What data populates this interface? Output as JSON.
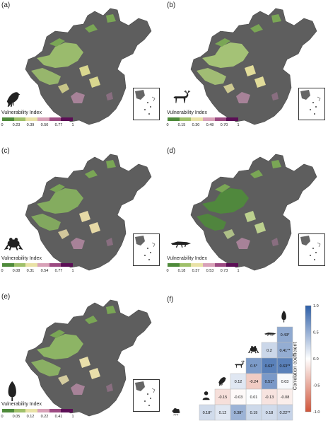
{
  "panels": [
    {
      "label": "(a)",
      "taxon_icon": "bird-icon",
      "legend_title": "Vulnerability Index",
      "ticks": [
        "0",
        "0.23",
        "0.39",
        "0.50",
        "0.77",
        "1"
      ]
    },
    {
      "label": "(b)",
      "taxon_icon": "deer-icon",
      "legend_title": "Vulnerability Index",
      "ticks": [
        "0",
        "0.15",
        "0.30",
        "0.48",
        "0.70",
        "1"
      ]
    },
    {
      "label": "(c)",
      "taxon_icon": "frog-icon",
      "legend_title": "Vulnerability Index",
      "ticks": [
        "0",
        "0.08",
        "0.31",
        "0.54",
        "0.77",
        "1"
      ]
    },
    {
      "label": "(d)",
      "taxon_icon": "crocodile-icon",
      "legend_title": "Vulnerability Index",
      "ticks": [
        "0",
        "0.18",
        "0.37",
        "0.53",
        "0.73",
        "1"
      ]
    },
    {
      "label": "(e)",
      "taxon_icon": "tree-icon",
      "legend_title": "Vulnerability Index",
      "ticks": [
        "0",
        "0.05",
        "0.12",
        "0.22",
        "0.41",
        "1"
      ]
    }
  ],
  "colorbar_colors": [
    "#4e8a3a",
    "#9fc06a",
    "#e9e2a6",
    "#d8a2b8",
    "#9c4a82",
    "#5b0e55"
  ],
  "matrix": {
    "label": "(f)",
    "colorbar_title": "Correlation coefficient",
    "colorbar_ticks": [
      "1.0",
      "0.5",
      "0.0",
      "-0.5",
      "-1.0"
    ],
    "color_positive": "#2e5fa8",
    "color_negative": "#d0553a",
    "row_icons": [
      "tree-icon",
      "crocodile-icon",
      "frog-icon",
      "deer-icon",
      "bird-icon",
      "person-icon",
      "cloud-rain-icon"
    ],
    "cells": [
      {
        "r": 0,
        "c": 0,
        "v": 0.43,
        "text": "0.43*"
      },
      {
        "r": 1,
        "c": 0,
        "v": 0.41,
        "text": "0.41**"
      },
      {
        "r": 1,
        "c": 1,
        "v": 0.2,
        "text": "0.2"
      },
      {
        "r": 2,
        "c": 0,
        "v": 0.63,
        "text": "0.63**"
      },
      {
        "r": 2,
        "c": 1,
        "v": 0.63,
        "text": "0.63*"
      },
      {
        "r": 2,
        "c": 2,
        "v": 0.5,
        "text": "0.5*"
      },
      {
        "r": 3,
        "c": 0,
        "v": 0.03,
        "text": "0.03"
      },
      {
        "r": 3,
        "c": 1,
        "v": 0.51,
        "text": "0.51*"
      },
      {
        "r": 3,
        "c": 2,
        "v": -0.24,
        "text": "-0.24"
      },
      {
        "r": 3,
        "c": 3,
        "v": 0.12,
        "text": "0.12"
      },
      {
        "r": 4,
        "c": 0,
        "v": -0.08,
        "text": "-0.08"
      },
      {
        "r": 4,
        "c": 1,
        "v": -0.13,
        "text": "-0.13"
      },
      {
        "r": 4,
        "c": 2,
        "v": 0.01,
        "text": "0.01"
      },
      {
        "r": 4,
        "c": 3,
        "v": -0.03,
        "text": "-0.03"
      },
      {
        "r": 4,
        "c": 4,
        "v": -0.15,
        "text": "-0.15"
      },
      {
        "r": 5,
        "c": 0,
        "v": 0.22,
        "text": "0.22**"
      },
      {
        "r": 5,
        "c": 1,
        "v": 0.18,
        "text": "0.18"
      },
      {
        "r": 5,
        "c": 2,
        "v": 0.19,
        "text": "0.19"
      },
      {
        "r": 5,
        "c": 3,
        "v": 0.38,
        "text": "0.38*"
      },
      {
        "r": 5,
        "c": 4,
        "v": 0.12,
        "text": "0.12"
      },
      {
        "r": 5,
        "c": 5,
        "v": 0.18,
        "text": "0.18*"
      }
    ]
  }
}
